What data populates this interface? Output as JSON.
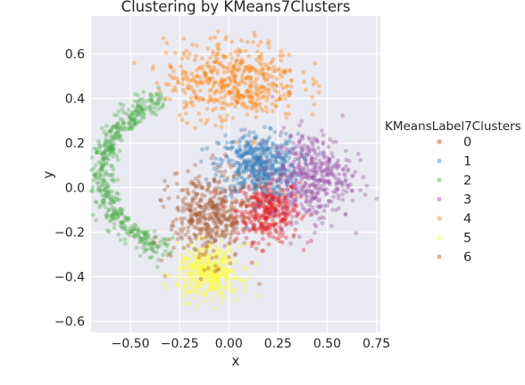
{
  "chart_data": {
    "type": "scatter",
    "title": "Clustering by KMeans7Clusters",
    "xlabel": "x",
    "ylabel": "y",
    "xlim": [
      -0.7,
      0.77
    ],
    "ylim": [
      -0.65,
      0.77
    ],
    "xticks": [
      -0.5,
      -0.25,
      0.0,
      0.25,
      0.5,
      0.75
    ],
    "xtick_labels": [
      "−0.50",
      "−0.25",
      "0.00",
      "0.25",
      "0.50",
      "0.75"
    ],
    "yticks": [
      -0.6,
      -0.4,
      -0.2,
      0.0,
      0.2,
      0.4,
      0.6
    ],
    "ytick_labels": [
      "−0.6",
      "−0.4",
      "−0.2",
      "0.0",
      "0.2",
      "0.4",
      "0.6"
    ],
    "grid": true,
    "background": "#eaeaf2",
    "legend": {
      "title": "KMeansLabel7Clusters",
      "placement": "right",
      "entries": [
        {
          "label": "0",
          "color": "#e41a1c"
        },
        {
          "label": "1",
          "color": "#377eb8"
        },
        {
          "label": "2",
          "color": "#4daf4a"
        },
        {
          "label": "3",
          "color": "#984ea3"
        },
        {
          "label": "4",
          "color": "#ff7f00"
        },
        {
          "label": "5",
          "color": "#ffff33"
        },
        {
          "label": "6",
          "color": "#a65628"
        }
      ]
    },
    "series": [
      {
        "name": "0",
        "color": "#e41a1c",
        "center": [
          0.2,
          -0.1
        ],
        "spread": [
          0.08,
          0.07
        ],
        "count": 380
      },
      {
        "name": "1",
        "color": "#377eb8",
        "center": [
          0.15,
          0.1
        ],
        "spread": [
          0.1,
          0.07
        ],
        "count": 500
      },
      {
        "name": "2",
        "color": "#4daf4a",
        "shape": "arc",
        "count": 520
      },
      {
        "name": "3",
        "color": "#984ea3",
        "center": [
          0.42,
          0.05
        ],
        "spread": [
          0.1,
          0.1
        ],
        "count": 420
      },
      {
        "name": "4",
        "color": "#ff7f00",
        "center": [
          0.02,
          0.48
        ],
        "spread": [
          0.17,
          0.09
        ],
        "count": 500
      },
      {
        "name": "5",
        "color": "#ffff33",
        "center": [
          -0.1,
          -0.38
        ],
        "spread": [
          0.08,
          0.06
        ],
        "count": 380
      },
      {
        "name": "6",
        "color": "#a65628",
        "center": [
          -0.1,
          -0.13
        ],
        "spread": [
          0.1,
          0.1
        ],
        "count": 420
      }
    ]
  }
}
